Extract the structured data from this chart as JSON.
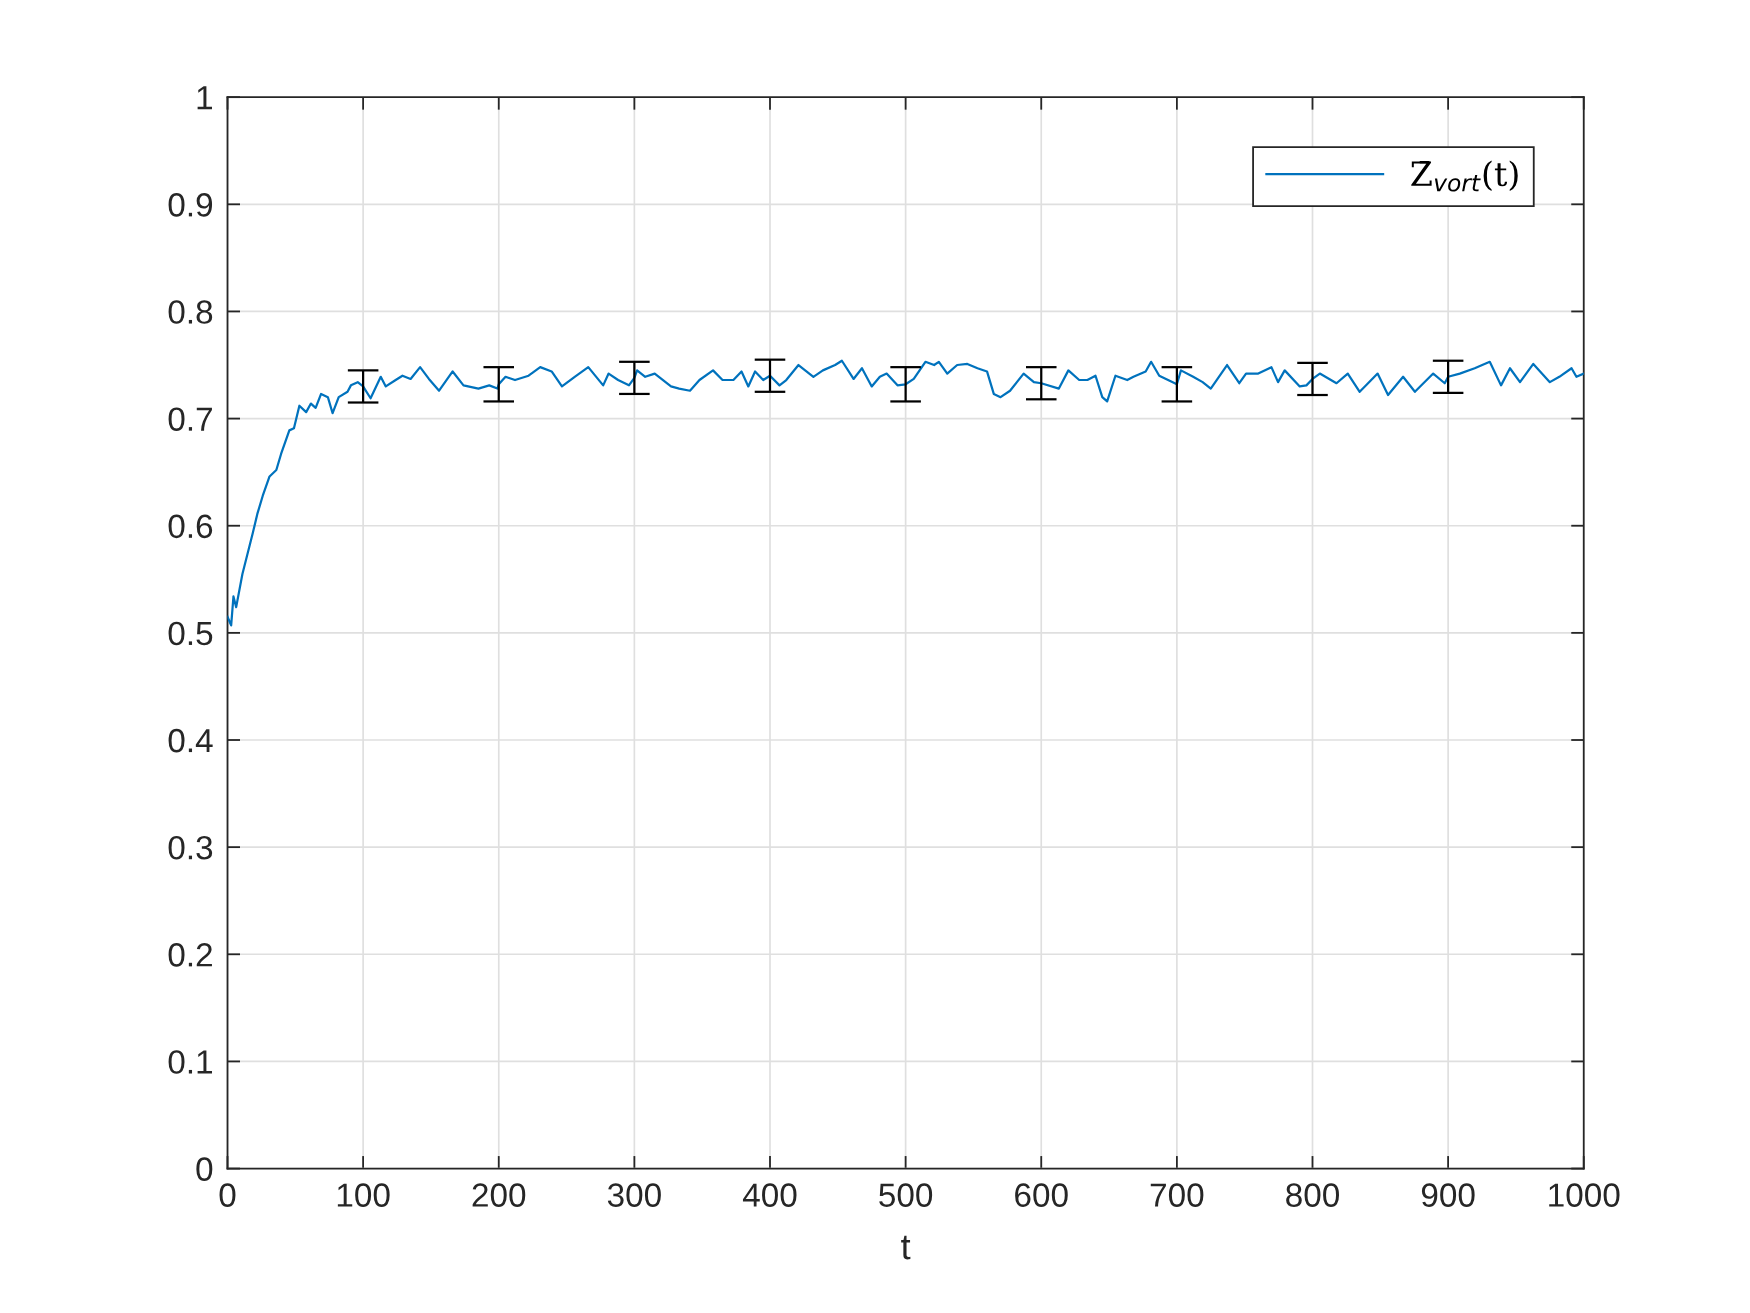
{
  "chart_data": {
    "type": "line",
    "xlabel": "t",
    "xlim": [
      0,
      1000
    ],
    "ylim": [
      0,
      1
    ],
    "xticks": [
      0,
      100,
      200,
      300,
      400,
      500,
      600,
      700,
      800,
      900,
      1000
    ],
    "yticks": [
      0,
      0.1,
      0.2,
      0.3,
      0.4,
      0.5,
      0.6,
      0.7,
      0.8,
      0.9,
      1
    ],
    "grid": true,
    "legend": "top right",
    "series": [
      {
        "name": "Z̄$_{vort}$(t)",
        "color": "#0072bd",
        "x": [
          0,
          2.7,
          4.4,
          6.4,
          11,
          18.6,
          22,
          26,
          31,
          36,
          39.5,
          45.6,
          49,
          53,
          58,
          61.5,
          65,
          69,
          74,
          77.5,
          82,
          88.5,
          91,
          96,
          100,
          101,
          105.5,
          113,
          116.7,
          124,
          129,
          135,
          142,
          148.5,
          156,
          166,
          174,
          185,
          193,
          199,
          200,
          205,
          212,
          222,
          230.6,
          239,
          246.6,
          256,
          266,
          277,
          281,
          288,
          296,
          300,
          302,
          308,
          315,
          327,
          333,
          341,
          348,
          358,
          365,
          373,
          379,
          384,
          389,
          395,
          400,
          407,
          412,
          421,
          432,
          439,
          448,
          453,
          461.6,
          467.8,
          475,
          481,
          486,
          494,
          500,
          506,
          514.6,
          521,
          524.5,
          530.7,
          538,
          545.5,
          553,
          560,
          565,
          570,
          577,
          587,
          594.6,
          600,
          613,
          620,
          628,
          634,
          640,
          645,
          648.6,
          654.7,
          663.4,
          668,
          677,
          681,
          687,
          700,
          703,
          712,
          719,
          725,
          737,
          746,
          751,
          760,
          769.7,
          774.6,
          779.5,
          790.6,
          795.5,
          800,
          805.4,
          817.7,
          826,
          834.8,
          848,
          855.7,
          866.8,
          875.5,
          889,
          897.5,
          900,
          908.6,
          919.6,
          930.7,
          939,
          945.6,
          953,
          962.8,
          975,
          982,
          991,
          994.6,
          1000
        ],
        "values": [
          0.515,
          0.507,
          0.534,
          0.524,
          0.555,
          0.593,
          0.611,
          0.628,
          0.646,
          0.652,
          0.667,
          0.689,
          0.691,
          0.712,
          0.706,
          0.714,
          0.71,
          0.723,
          0.72,
          0.705,
          0.72,
          0.725,
          0.731,
          0.734,
          0.73,
          0.728,
          0.719,
          0.739,
          0.73,
          0.736,
          0.74,
          0.737,
          0.748,
          0.737,
          0.726,
          0.744,
          0.731,
          0.728,
          0.731,
          0.728,
          0.732,
          0.739,
          0.736,
          0.74,
          0.748,
          0.744,
          0.73,
          0.739,
          0.748,
          0.731,
          0.742,
          0.736,
          0.731,
          0.738,
          0.745,
          0.739,
          0.742,
          0.73,
          0.728,
          0.726,
          0.736,
          0.745,
          0.736,
          0.736,
          0.744,
          0.73,
          0.744,
          0.736,
          0.74,
          0.731,
          0.736,
          0.75,
          0.739,
          0.745,
          0.75,
          0.754,
          0.737,
          0.747,
          0.73,
          0.739,
          0.742,
          0.731,
          0.732,
          0.737,
          0.753,
          0.75,
          0.753,
          0.742,
          0.75,
          0.751,
          0.747,
          0.744,
          0.723,
          0.72,
          0.726,
          0.742,
          0.734,
          0.733,
          0.728,
          0.745,
          0.736,
          0.736,
          0.74,
          0.72,
          0.716,
          0.74,
          0.736,
          0.739,
          0.744,
          0.753,
          0.74,
          0.732,
          0.745,
          0.739,
          0.734,
          0.728,
          0.75,
          0.733,
          0.742,
          0.742,
          0.748,
          0.734,
          0.745,
          0.73,
          0.731,
          0.737,
          0.742,
          0.733,
          0.742,
          0.725,
          0.742,
          0.722,
          0.739,
          0.725,
          0.742,
          0.733,
          0.739,
          0.742,
          0.747,
          0.753,
          0.731,
          0.747,
          0.734,
          0.751,
          0.734,
          0.739,
          0.747,
          0.739,
          0.742
        ],
        "errors": [
          null,
          null,
          null,
          null,
          null,
          null,
          null,
          null,
          null,
          null,
          null,
          null,
          null,
          null,
          null,
          null,
          null,
          null,
          null,
          null,
          null,
          null,
          null,
          null,
          0.015,
          null,
          null,
          null,
          null,
          null,
          null,
          null,
          null,
          null,
          null,
          null,
          null,
          null,
          null,
          null,
          0.016,
          null,
          null,
          null,
          null,
          null,
          null,
          null,
          null,
          null,
          null,
          null,
          null,
          0.015,
          null,
          null,
          null,
          null,
          null,
          null,
          null,
          null,
          null,
          null,
          null,
          null,
          null,
          null,
          0.015,
          null,
          null,
          null,
          null,
          null,
          null,
          null,
          null,
          null,
          null,
          null,
          null,
          null,
          0.016,
          null,
          null,
          null,
          null,
          null,
          null,
          null,
          null,
          null,
          null,
          null,
          null,
          null,
          null,
          0.015,
          null,
          null,
          null,
          null,
          null,
          null,
          null,
          null,
          null,
          null,
          null,
          null,
          null,
          0.016,
          null,
          null,
          null,
          null,
          null,
          null,
          null,
          null,
          null,
          null,
          null,
          null,
          null,
          0.015,
          null,
          null,
          null,
          null,
          null,
          null,
          null,
          null,
          null,
          null,
          0.015,
          null,
          null,
          null,
          null,
          null,
          null,
          null,
          null,
          null,
          null,
          null,
          null
        ]
      }
    ]
  }
}
